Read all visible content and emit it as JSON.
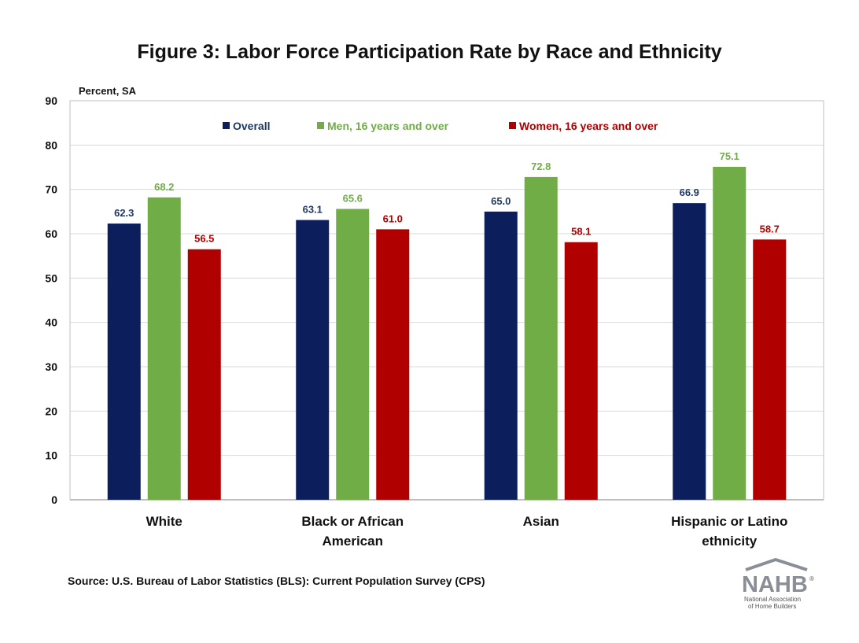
{
  "chart_data": {
    "type": "bar",
    "title": "Figure 3: Labor Force Participation Rate by Race and Ethnicity",
    "ylabel": "Percent, SA",
    "xlabel": "",
    "ylim": [
      0,
      90
    ],
    "yticks": [
      0,
      10,
      20,
      30,
      40,
      50,
      60,
      70,
      80,
      90
    ],
    "grid": true,
    "legend_position": "top",
    "categories": [
      [
        "White"
      ],
      [
        "Black or African",
        "American"
      ],
      [
        "Asian"
      ],
      [
        "Hispanic or Latino",
        "ethnicity"
      ]
    ],
    "series": [
      {
        "name": "Overall",
        "color": "#0c1f5c",
        "label_color": "#1f3864",
        "values": [
          62.3,
          63.1,
          65.0,
          66.9
        ],
        "labels": [
          "62.3",
          "63.1",
          "65.0",
          "66.9"
        ]
      },
      {
        "name": "Men, 16 years and over",
        "color": "#70ad47",
        "label_color": "#70ad47",
        "values": [
          68.2,
          65.6,
          72.8,
          75.1
        ],
        "labels": [
          "68.2",
          "65.6",
          "72.8",
          "75.1"
        ]
      },
      {
        "name": "Women, 16 years and over",
        "color": "#b00000",
        "label_color": "#b00000",
        "values": [
          56.5,
          61.0,
          58.1,
          58.7
        ],
        "labels": [
          "56.5",
          "61.0",
          "58.1",
          "58.7"
        ]
      }
    ]
  },
  "source": "Source: U.S. Bureau of Labor Statistics (BLS): Current Population Survey (CPS)",
  "logo": {
    "name": "NAHB",
    "mark": "®",
    "tagline_1": "National Association",
    "tagline_2": "of Home Builders",
    "color": "#8a8f97"
  }
}
